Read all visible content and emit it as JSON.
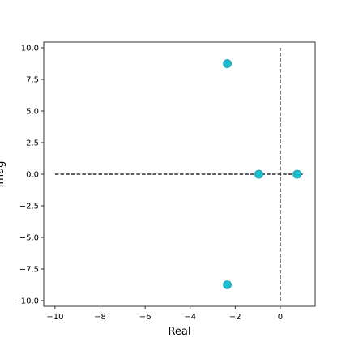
{
  "chart_data": {
    "type": "scatter",
    "title": "",
    "xlabel": "Real",
    "ylabel": "Imag",
    "xlim": [
      -10.5,
      1.55
    ],
    "ylim": [
      -10.45,
      10.45
    ],
    "grid": false,
    "legend": "none",
    "x_ticks": [
      -10,
      -8,
      -6,
      -4,
      -2,
      0
    ],
    "x_tick_labels": [
      "−10",
      "−8",
      "−6",
      "−4",
      "−2",
      "0"
    ],
    "y_ticks": [
      10,
      7.5,
      5,
      2.5,
      0,
      -2.5,
      -5,
      -7.5,
      -10
    ],
    "y_tick_labels": [
      "10.0",
      "7.5",
      "5.0",
      "2.5",
      "0.0",
      "−2.5",
      "−5.0",
      "−7.5",
      "−10.0"
    ],
    "reference_lines": [
      {
        "orientation": "horizontal",
        "value": 0,
        "from": -10,
        "to": 1,
        "style": "dashed"
      },
      {
        "orientation": "vertical",
        "value": 0,
        "from": -10,
        "to": 10,
        "style": "dashed"
      }
    ],
    "series": [
      {
        "color": "#17becf",
        "points": [
          {
            "x": -2.35,
            "y": 8.75
          },
          {
            "x": -2.35,
            "y": -8.75
          },
          {
            "x": -0.95,
            "y": 0
          },
          {
            "x": 0.75,
            "y": 0
          }
        ]
      }
    ]
  }
}
